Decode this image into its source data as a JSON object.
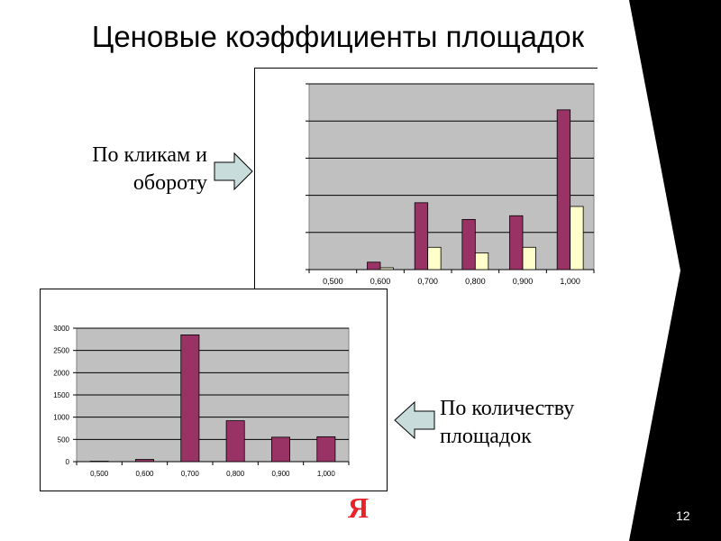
{
  "slide": {
    "title": "Ценовые коэффициенты площадок",
    "page_number": "12",
    "logo_text": "Я",
    "colors": {
      "background": "#ffffff",
      "frame": "#000000",
      "series1": "#993366",
      "series2": "#ffffcc",
      "plot_bg": "#c0c0c0",
      "arrow_fill": "#c8dcdc"
    }
  },
  "labels": {
    "top_line1": "По кликам и",
    "top_line2": "обороту",
    "bottom_line1": "По количеству",
    "bottom_line2": "площадок"
  },
  "icons": {
    "top_arrow": "arrow-right-icon",
    "bottom_arrow": "arrow-left-icon"
  },
  "chart_data": [
    {
      "type": "bar",
      "categories": [
        "0,500",
        "0,600",
        "0,700",
        "0,800",
        "0,900",
        "1,000"
      ],
      "series": [
        {
          "values": [
            0,
            2,
            18,
            13.5,
            14.5,
            43
          ]
        },
        {
          "values": [
            0,
            0.5,
            6,
            4.5,
            6,
            17
          ]
        }
      ],
      "ylim": [
        0,
        50
      ],
      "grid": true
    },
    {
      "type": "bar",
      "categories": [
        "0,500",
        "0,600",
        "0,700",
        "0,800",
        "0,900",
        "1,000"
      ],
      "series": [
        {
          "values": [
            10,
            50,
            2850,
            920,
            550,
            560
          ]
        }
      ],
      "yticks": [
        "0",
        "500",
        "1000",
        "1500",
        "2000",
        "2500",
        "3000"
      ],
      "ylim": [
        0,
        3000
      ],
      "grid": true
    }
  ]
}
